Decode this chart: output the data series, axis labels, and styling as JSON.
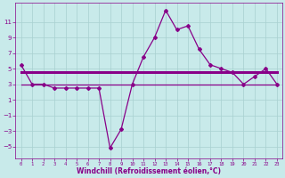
{
  "x": [
    0,
    1,
    2,
    3,
    4,
    5,
    6,
    7,
    8,
    9,
    10,
    11,
    12,
    13,
    14,
    15,
    16,
    17,
    18,
    19,
    20,
    21,
    22,
    23
  ],
  "windchill": [
    5.5,
    3.0,
    3.0,
    2.5,
    2.5,
    2.5,
    2.5,
    2.5,
    -5.2,
    -2.8,
    3.0,
    6.5,
    9.0,
    12.5,
    10.0,
    10.5,
    7.5,
    5.5,
    5.0,
    4.5,
    3.0,
    4.0,
    5.0,
    3.0
  ],
  "line2": [
    4.5,
    4.5,
    4.5,
    4.5,
    4.5,
    4.5,
    4.5,
    4.5,
    4.5,
    4.5,
    4.5,
    4.5,
    4.5,
    4.5,
    4.5,
    4.5,
    4.5,
    4.5,
    4.5,
    4.5,
    4.5,
    4.5,
    4.5,
    4.5
  ],
  "line3": [
    3.0,
    3.0,
    3.0,
    3.0,
    3.0,
    3.0,
    3.0,
    3.0,
    3.0,
    3.0,
    3.0,
    3.0,
    3.0,
    3.0,
    3.0,
    3.0,
    3.0,
    3.0,
    3.0,
    3.0,
    3.0,
    3.0,
    3.0,
    3.0
  ],
  "line_color": "#880088",
  "bg_color": "#c8eaea",
  "grid_color": "#a8d0d0",
  "xlabel": "Windchill (Refroidissement éolien,°C)",
  "ylim": [
    -6.5,
    13.5
  ],
  "xlim": [
    -0.5,
    23.5
  ],
  "yticks": [
    -5,
    -3,
    -1,
    1,
    3,
    5,
    7,
    9,
    11
  ],
  "xticks": [
    0,
    1,
    2,
    3,
    4,
    5,
    6,
    7,
    8,
    9,
    10,
    11,
    12,
    13,
    14,
    15,
    16,
    17,
    18,
    19,
    20,
    21,
    22,
    23
  ]
}
